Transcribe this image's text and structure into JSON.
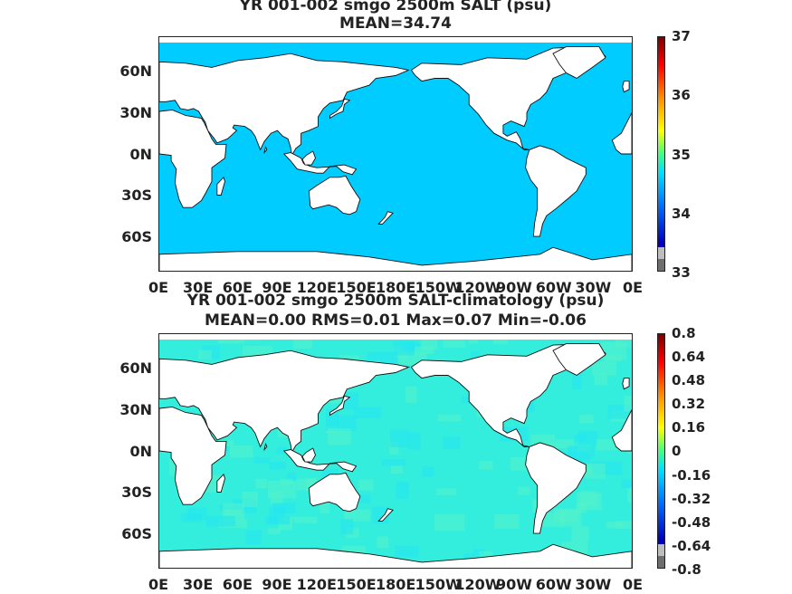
{
  "panels": [
    {
      "title": "YR 001-002 smgo 2500m SALT (psu)",
      "subtitle": "MEAN=34.74",
      "lat_labels": [
        "60N",
        "30N",
        "0N",
        "30S",
        "60S"
      ],
      "lon_labels": [
        "0E",
        "30E",
        "60E",
        "90E",
        "120E",
        "150E",
        "180E",
        "150W",
        "120W",
        "90W",
        "60W",
        "30W",
        "0E"
      ],
      "colorbar_labels": [
        "37",
        "36",
        "35",
        "34",
        "33"
      ],
      "ocean_color": "#00ccff",
      "colorbar_colors": [
        "#7a0000",
        "#ff0000",
        "#ff8c00",
        "#ffff00",
        "#40ff80",
        "#00e0ff",
        "#0070ff",
        "#0000c0",
        "#bdbdbd",
        "#6e6e6e"
      ]
    },
    {
      "title": "YR 001-002 smgo 2500m SALT-climatology (psu)",
      "subtitle": "MEAN=0.00   RMS=0.01   Max=0.07   Min=-0.06",
      "lat_labels": [
        "60N",
        "30N",
        "0N",
        "30S",
        "60S"
      ],
      "lon_labels": [
        "0E",
        "30E",
        "60E",
        "90E",
        "120E",
        "150E",
        "180E",
        "150W",
        "120W",
        "90W",
        "60W",
        "30W",
        "0E"
      ],
      "colorbar_labels": [
        "0.8",
        "0.64",
        "0.48",
        "0.32",
        "0.16",
        "0",
        "-0.16",
        "-0.32",
        "-0.48",
        "-0.64",
        "-0.8"
      ],
      "ocean_color": "#33eedd",
      "colorbar_colors": [
        "#7a0000",
        "#ff0000",
        "#ff8c00",
        "#ffff00",
        "#40ff80",
        "#00e0ff",
        "#0070ff",
        "#0000c0",
        "#bdbdbd",
        "#6e6e6e"
      ]
    }
  ]
}
